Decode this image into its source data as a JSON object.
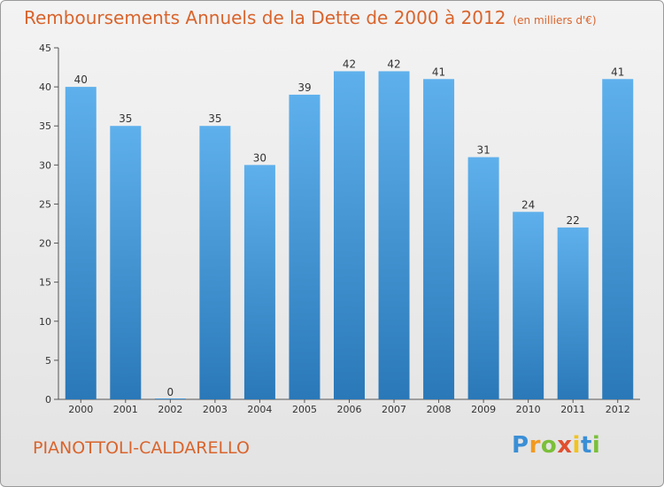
{
  "chart_data": {
    "type": "bar",
    "title": "Remboursements Annuels de la Dette de 2000 à 2012",
    "unit": "(en milliers d'€)",
    "categories": [
      "2000",
      "2001",
      "2002",
      "2003",
      "2004",
      "2005",
      "2006",
      "2007",
      "2008",
      "2009",
      "2010",
      "2011",
      "2012"
    ],
    "values": [
      40,
      35,
      0,
      35,
      30,
      39,
      42,
      42,
      41,
      31,
      24,
      22,
      41
    ],
    "data_labels": [
      "40",
      "35",
      "0",
      "35",
      "30",
      "39",
      "42",
      "42",
      "41",
      "31",
      "24",
      "22",
      "41"
    ],
    "yticks": [
      0,
      5,
      10,
      15,
      20,
      25,
      30,
      35,
      40,
      45
    ],
    "ylim": [
      0,
      45
    ],
    "xlabel": "",
    "ylabel": "",
    "grid": false,
    "legend": "none"
  },
  "place": "PIANOTTOLI-CALDARELLO",
  "brand": {
    "letters": [
      "P",
      "r",
      "o",
      "x",
      "i",
      "t",
      "i"
    ],
    "colors": [
      "#3a8fd6",
      "#f29a1f",
      "#7bbf3a",
      "#e04f2f",
      "#f2c31a",
      "#3a8fd6",
      "#7bbf3a"
    ]
  },
  "colors": {
    "bar_top": "#5eb0ec",
    "bar_bottom": "#2a78b8",
    "text_accent": "#d9642c"
  }
}
